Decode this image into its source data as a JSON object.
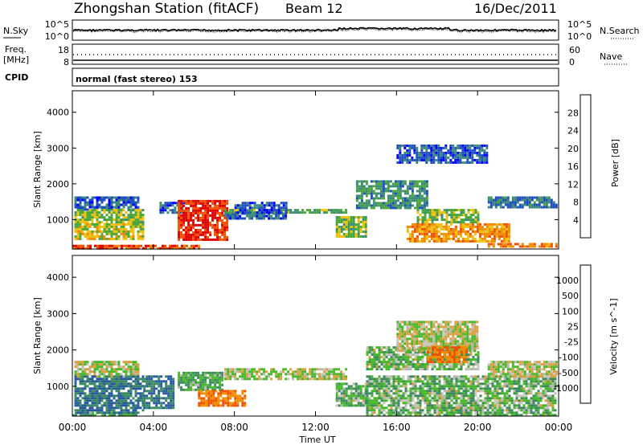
{
  "header": {
    "title": "Zhongshan Station (fitACF)",
    "beam": "Beam 12",
    "date": "16/Dec/2011",
    "cpid_label": "CPID",
    "cpid_value": "normal (fast stereo) 153"
  },
  "noise_panel": {
    "left_label": "N.Sky",
    "right_label": "N.Search",
    "left_ticks": [
      "10^5",
      "10^0"
    ],
    "right_ticks": [
      "10^5",
      "10^0"
    ]
  },
  "freq_panel": {
    "left_label_1": "Freq.",
    "left_label_2": "[MHz]",
    "right_label": "Nave",
    "left_ticks": [
      "18",
      "8"
    ],
    "right_ticks": [
      "60",
      "0"
    ]
  },
  "time_axis": {
    "xlabel": "Time UT",
    "ticks": [
      "00:00",
      "04:00",
      "08:00",
      "12:00",
      "16:00",
      "20:00",
      "00:00"
    ]
  },
  "colors": {
    "power_scale": [
      "#0000ff",
      "#1f4fc0",
      "#3c8a78",
      "#4aa83a",
      "#f0c010",
      "#f08c00",
      "#f05000",
      "#e00000"
    ],
    "velocity_scale": [
      "#e00000",
      "#f05000",
      "#f08c00",
      "#d8a040",
      "#c8c8c0",
      "#b8b8b0",
      "#48b828",
      "#3c8a60",
      "#285aa0",
      "#2040c0"
    ]
  },
  "chart_data": [
    {
      "type": "heatmap",
      "title": "Power",
      "xlabel": "",
      "ylabel": "Slant Range [km]",
      "xlim": [
        "00:00",
        "24:00"
      ],
      "ylim": [
        180,
        4600
      ],
      "yticks": [
        1000,
        2000,
        3000,
        4000
      ],
      "colorbar": {
        "label": "Power [dB]",
        "ticks": [
          "4",
          "8",
          "12",
          "16",
          "20",
          "24",
          "28"
        ],
        "range": [
          0,
          30
        ]
      },
      "regions": [
        {
          "t0": 0.0,
          "t1": 6.2,
          "r0": 220,
          "r1": 300,
          "value": 25
        },
        {
          "t0": 0.1,
          "t1": 3.2,
          "r0": 1300,
          "r1": 1650,
          "value": 6
        },
        {
          "t0": 0.1,
          "t1": 3.5,
          "r0": 900,
          "r1": 1300,
          "value": 14
        },
        {
          "t0": 0.1,
          "t1": 3.5,
          "r0": 450,
          "r1": 900,
          "value": 16
        },
        {
          "t0": 4.3,
          "t1": 5.5,
          "r0": 1200,
          "r1": 1500,
          "value": 6
        },
        {
          "t0": 5.2,
          "t1": 7.6,
          "r0": 450,
          "r1": 1550,
          "value": 27
        },
        {
          "t0": 7.5,
          "t1": 10.5,
          "r0": 1050,
          "r1": 1200,
          "value": 7
        },
        {
          "t0": 7.5,
          "t1": 13.5,
          "r0": 1200,
          "r1": 1300,
          "value": 12
        },
        {
          "t0": 8.0,
          "t1": 10.5,
          "r0": 1200,
          "r1": 1500,
          "value": 5
        },
        {
          "t0": 13.0,
          "t1": 14.5,
          "r0": 500,
          "r1": 1100,
          "value": 14
        },
        {
          "t0": 14.0,
          "t1": 17.5,
          "r0": 1300,
          "r1": 2100,
          "value": 10
        },
        {
          "t0": 16.0,
          "t1": 20.5,
          "r0": 2600,
          "r1": 3100,
          "value": 6
        },
        {
          "t0": 16.5,
          "t1": 21.5,
          "r0": 400,
          "r1": 900,
          "value": 20
        },
        {
          "t0": 17.0,
          "t1": 20.0,
          "r0": 900,
          "r1": 1300,
          "value": 14
        },
        {
          "t0": 20.5,
          "t1": 23.9,
          "r0": 1350,
          "r1": 1650,
          "value": 8
        },
        {
          "t0": 20.5,
          "t1": 23.9,
          "r0": 220,
          "r1": 350,
          "value": 22
        }
      ]
    },
    {
      "type": "heatmap",
      "title": "Velocity",
      "xlabel": "Time UT",
      "ylabel": "Slant Range [km]",
      "xlim": [
        "00:00",
        "24:00"
      ],
      "ylim": [
        180,
        4600
      ],
      "yticks": [
        1000,
        2000,
        3000,
        4000
      ],
      "colorbar": {
        "label": "Velocity [m s^-1]",
        "ticks": [
          "1000",
          "500",
          "100",
          "25",
          "-25",
          "-100",
          "-500",
          "-1000"
        ]
      },
      "regions": [
        {
          "t0": 0.0,
          "t1": 3.2,
          "r0": 220,
          "r1": 300,
          "value": 100
        },
        {
          "t0": 0.1,
          "t1": 3.2,
          "r0": 1300,
          "r1": 1700,
          "value": 0
        },
        {
          "t0": 0.1,
          "t1": 3.5,
          "r0": 300,
          "r1": 1300,
          "value": 300
        },
        {
          "t0": 3.5,
          "t1": 5.0,
          "r0": 400,
          "r1": 1300,
          "value": 300
        },
        {
          "t0": 5.2,
          "t1": 7.4,
          "r0": 900,
          "r1": 1400,
          "value": 100
        },
        {
          "t0": 6.2,
          "t1": 8.5,
          "r0": 450,
          "r1": 900,
          "value": -300
        },
        {
          "t0": 7.5,
          "t1": 13.5,
          "r0": 1200,
          "r1": 1500,
          "value": 0
        },
        {
          "t0": 13.0,
          "t1": 14.5,
          "r0": 500,
          "r1": 1100,
          "value": 60
        },
        {
          "t0": 14.5,
          "t1": 20.0,
          "r0": 1500,
          "r1": 2100,
          "value": 60
        },
        {
          "t0": 16.0,
          "t1": 20.0,
          "r0": 2000,
          "r1": 2800,
          "value": 0
        },
        {
          "t0": 17.5,
          "t1": 19.5,
          "r0": 1700,
          "r1": 2100,
          "value": -300
        },
        {
          "t0": 14.5,
          "t1": 23.9,
          "r0": 220,
          "r1": 1300,
          "value": 60
        },
        {
          "t0": 20.5,
          "t1": 23.9,
          "r0": 1300,
          "r1": 1700,
          "value": 0
        }
      ]
    }
  ]
}
